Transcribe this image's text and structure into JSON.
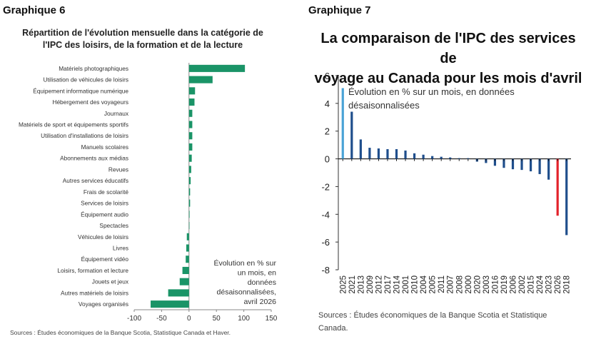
{
  "left_panel": {
    "heading": "Graphique 6",
    "title_line1": "Répartition de l'évolution mensuelle dans la catégorie de",
    "title_line2": "l'IPC des loisirs, de la formation et de la lecture",
    "note_lines": [
      "Évolution en % sur",
      "un mois, en",
      "données",
      "désaisonnalisées,",
      "avril 2026"
    ],
    "source": "Sources : Études économiques de la Banque Scotia, Statistique Canada et Haver."
  },
  "right_panel": {
    "heading": "Graphique 7",
    "title_line1": "La comparaison de l'IPC des services de",
    "title_line2": "voyage au Canada pour les mois d'avril",
    "note_lines": [
      "Évolution en % sur un mois, en données",
      "désaisonnalisées"
    ],
    "source": "Sources : Études économiques de la Banque Scotia et Statistique Canada."
  },
  "chart_data": [
    {
      "type": "bar",
      "orientation": "horizontal",
      "categories": [
        "Matériels photographiques",
        "Utilisation de véhicules de loisirs",
        "Équipement informatique numérique",
        "Hébergement des voyageurs",
        "Journaux",
        "Matériels de sport et équipements sportifs",
        "Utilisation d'installations de loisirs",
        "Manuels scolaires",
        "Abonnements aux médias",
        "Revues",
        "Autres services éducatifs",
        "Frais de scolarité",
        "Services de loisirs",
        "Équipement audio",
        "Spectacles",
        "Véhicules de loisirs",
        "Livres",
        "Équipement vidéo",
        "Loisirs, formation et lecture",
        "Jouets et jeux",
        "Autres matériels de loisirs",
        "Voyages organisés"
      ],
      "values": [
        102,
        43,
        11,
        10,
        6,
        6,
        6,
        6,
        5,
        4,
        3,
        2,
        2,
        1,
        0,
        -4,
        -5,
        -6,
        -12,
        -17,
        -38,
        -70
      ],
      "xlim": [
        -100,
        150
      ],
      "xticks": [
        -100,
        -50,
        0,
        50,
        100,
        150
      ],
      "color": "#1a9467"
    },
    {
      "type": "bar",
      "categories": [
        "2025",
        "2021",
        "2013",
        "2009",
        "2012",
        "2017",
        "2014",
        "2001",
        "2010",
        "2004",
        "2005",
        "2011",
        "2007",
        "2008",
        "2000",
        "2020",
        "2003",
        "2016",
        "2019",
        "2006",
        "2002",
        "2015",
        "2024",
        "2023",
        "2026",
        "2018"
      ],
      "values": [
        5.1,
        3.4,
        1.4,
        0.8,
        0.75,
        0.7,
        0.7,
        0.6,
        0.4,
        0.3,
        0.2,
        0.15,
        0.1,
        0.05,
        0.05,
        -0.2,
        -0.3,
        -0.5,
        -0.65,
        -0.75,
        -0.8,
        -0.9,
        -1.1,
        -1.5,
        -4.1,
        -5.5
      ],
      "highlight": {
        "2025": "#4aa3d6",
        "2026": "#e3222b"
      },
      "color": "#1f4e8c",
      "ylim": [
        -8,
        6
      ],
      "yticks": [
        -8,
        -6,
        -4,
        -2,
        0,
        2,
        4,
        6
      ]
    }
  ]
}
